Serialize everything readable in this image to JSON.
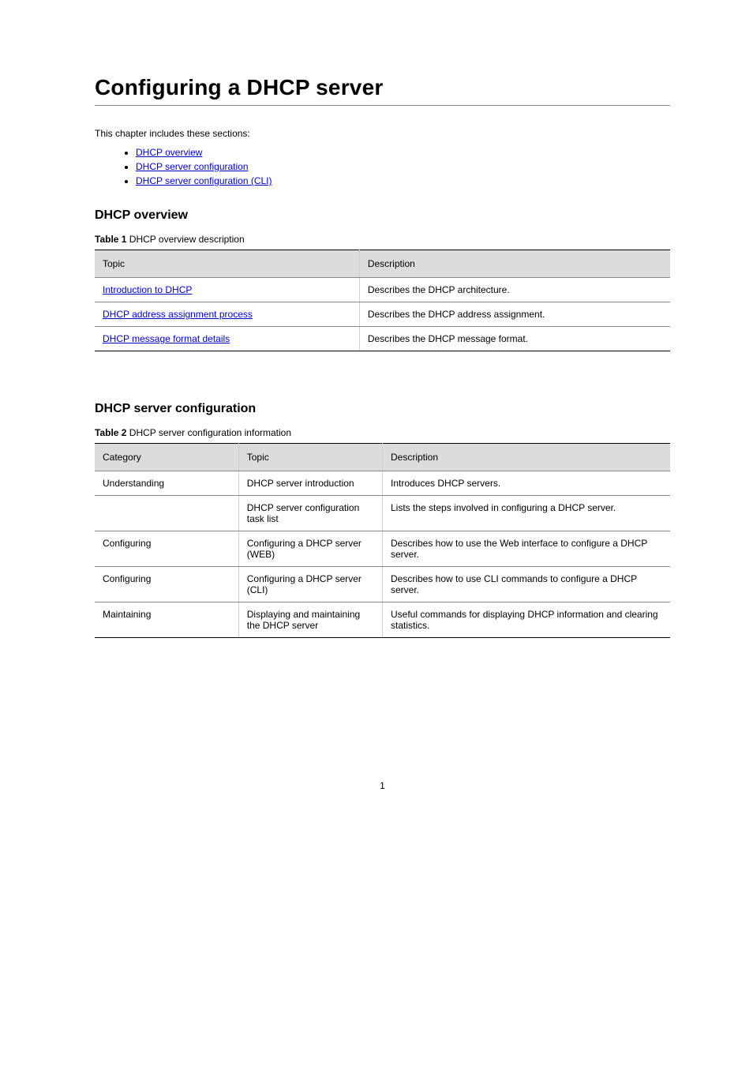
{
  "title": "Configuring a DHCP server",
  "intro": "This chapter includes these sections:",
  "bullets": [
    "DHCP overview",
    "DHCP server configuration",
    "DHCP server configuration (CLI)"
  ],
  "section1": {
    "heading": "DHCP overview",
    "caption_label": "Table 1",
    "caption_text": " DHCP overview description",
    "columns": [
      "Topic",
      "Description"
    ],
    "rows": [
      {
        "topic_link": "Introduction to DHCP",
        "desc": "Describes the DHCP architecture."
      },
      {
        "topic_link": "DHCP address assignment process",
        "desc": "Describes the DHCP address assignment."
      },
      {
        "topic_link": "DHCP message format details",
        "desc": "Describes the DHCP message format."
      }
    ]
  },
  "section2": {
    "heading": "DHCP server configuration",
    "caption_label": "Table 2",
    "caption_text": " DHCP server configuration information",
    "columns": [
      "Category",
      "Topic",
      "Description"
    ],
    "rows": [
      {
        "category": "Understanding",
        "topic": "DHCP server introduction",
        "desc": "Introduces DHCP servers."
      },
      {
        "category": "",
        "topic": "DHCP server configuration task list",
        "desc": "Lists the steps involved in configuring a DHCP server."
      },
      {
        "category": "Configuring",
        "topic": "Configuring a DHCP server (WEB)",
        "desc": "Describes how to use the Web interface to configure a DHCP server."
      },
      {
        "category": "Configuring",
        "topic": "Configuring a DHCP server (CLI)",
        "desc": "Describes how to use CLI commands to configure a DHCP server."
      },
      {
        "category": "Maintaining",
        "topic": "Displaying and maintaining the DHCP server",
        "desc": "Useful commands for displaying DHCP information and clearing statistics."
      }
    ]
  },
  "page_number": "1"
}
